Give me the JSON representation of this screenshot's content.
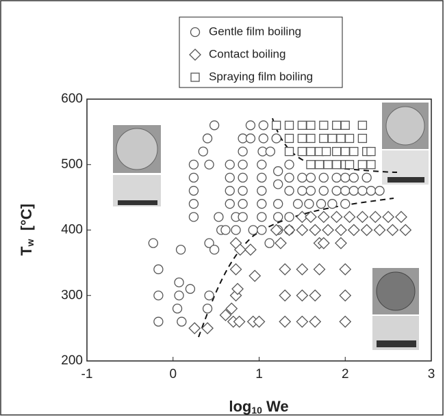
{
  "chart_data": {
    "type": "scatter",
    "xlabel": [
      "log",
      "10",
      " We"
    ],
    "ylabel": [
      "T",
      "w",
      "  [°C]"
    ],
    "xlim": [
      -1,
      3
    ],
    "xticks": [
      -1,
      0,
      1,
      2,
      3
    ],
    "ylim": [
      200,
      600
    ],
    "yticks": [
      200,
      300,
      400,
      500,
      600
    ],
    "series": [
      {
        "name": "Gentle film boiling",
        "marker": "circle",
        "color": "#555555",
        "x": [
          -0.23,
          -0.17,
          -0.17,
          -0.17,
          0.09,
          0.07,
          0.07,
          0.05,
          0.1,
          0.2,
          0.24,
          0.24,
          0.24,
          0.24,
          0.24,
          0.35,
          0.4,
          0.48,
          0.42,
          0.42,
          0.48,
          0.42,
          0.4,
          0.53,
          0.56,
          0.61,
          0.66,
          0.66,
          0.66,
          0.66,
          0.73,
          0.73,
          0.81,
          0.81,
          0.81,
          0.81,
          0.81,
          0.81,
          0.81,
          0.9,
          0.9,
          0.93,
          1.05,
          1.05,
          1.04,
          1.03,
          1.03,
          1.03,
          1.03,
          1.03,
          1.03,
          1.12,
          1.13,
          1.2,
          1.22,
          1.22,
          1.22,
          1.22,
          1.22,
          1.35,
          1.35,
          1.35,
          1.35,
          1.35,
          1.5,
          1.5,
          1.45,
          1.6,
          1.6,
          1.58,
          1.75,
          1.75,
          1.72,
          1.9,
          1.9,
          1.85,
          2.0,
          2.0,
          2.0,
          2.1,
          2.1,
          2.2,
          2.3,
          2.4,
          2.25
        ],
        "y": [
          380,
          340,
          300,
          260,
          370,
          320,
          300,
          280,
          260,
          310,
          500,
          480,
          460,
          440,
          420,
          520,
          540,
          560,
          500,
          380,
          370,
          300,
          280,
          420,
          400,
          400,
          500,
          480,
          460,
          440,
          420,
          400,
          540,
          520,
          500,
          480,
          460,
          440,
          420,
          560,
          540,
          400,
          560,
          540,
          520,
          500,
          480,
          460,
          440,
          420,
          400,
          380,
          520,
          540,
          490,
          470,
          440,
          420,
          400,
          500,
          480,
          460,
          420,
          400,
          480,
          460,
          440,
          480,
          460,
          440,
          480,
          460,
          440,
          480,
          460,
          440,
          480,
          460,
          440,
          480,
          460,
          460,
          460,
          460,
          480
        ]
      },
      {
        "name": "Contact boiling",
        "marker": "diamond",
        "color": "#555555",
        "x": [
          0.25,
          0.4,
          0.61,
          0.68,
          0.73,
          0.75,
          0.73,
          0.7,
          0.77,
          0.93,
          1.0,
          0.95,
          0.73,
          0.78,
          0.9,
          1.3,
          1.5,
          1.65,
          2.0,
          1.3,
          1.5,
          1.65,
          2.0,
          1.3,
          1.5,
          1.7,
          2.0,
          1.2,
          1.35,
          1.5,
          1.65,
          1.8,
          1.95,
          2.1,
          2.25,
          2.4,
          2.55,
          2.7,
          1.5,
          1.6,
          1.75,
          1.9,
          2.05,
          2.2,
          2.35,
          2.5,
          2.65,
          1.25,
          1.7,
          1.75,
          1.95
        ],
        "y": [
          250,
          250,
          270,
          280,
          300,
          310,
          340,
          260,
          260,
          260,
          260,
          330,
          380,
          370,
          370,
          260,
          260,
          260,
          260,
          300,
          300,
          300,
          300,
          340,
          340,
          340,
          340,
          400,
          400,
          400,
          400,
          400,
          400,
          400,
          400,
          400,
          400,
          400,
          420,
          420,
          420,
          420,
          420,
          420,
          420,
          420,
          420,
          380,
          380,
          380,
          380
        ]
      },
      {
        "name": "Spraying film boiling",
        "marker": "square",
        "color": "#555555",
        "x": [
          1.2,
          1.35,
          1.5,
          1.6,
          1.75,
          1.9,
          2.0,
          2.2,
          1.35,
          1.5,
          1.6,
          1.75,
          1.85,
          1.95,
          2.05,
          2.2,
          1.35,
          1.5,
          1.6,
          1.7,
          1.78,
          1.9,
          2.0,
          2.1,
          2.25,
          2.3,
          1.6,
          1.7,
          1.8,
          1.9,
          2.0,
          2.05,
          2.2,
          2.3
        ],
        "y": [
          560,
          560,
          560,
          560,
          560,
          560,
          560,
          560,
          540,
          540,
          540,
          540,
          540,
          540,
          540,
          540,
          520,
          520,
          520,
          520,
          520,
          520,
          520,
          520,
          520,
          520,
          500,
          500,
          500,
          500,
          500,
          500,
          500,
          500
        ]
      }
    ]
  }
}
